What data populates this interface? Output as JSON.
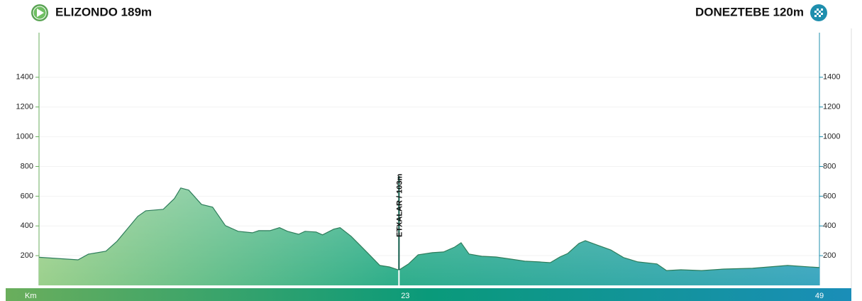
{
  "chart_data": {
    "type": "area",
    "title_left": "ELIZONDO 189m",
    "title_right": "DONEZTEBE 120m",
    "x": [
      0,
      2.45,
      3.1,
      4.2,
      4.9,
      6.2,
      6.7,
      7.8,
      8.5,
      8.9,
      9.4,
      10.2,
      10.9,
      11.7,
      12.5,
      13.4,
      13.8,
      14.5,
      15.1,
      15.6,
      16.3,
      16.7,
      17.4,
      17.8,
      18.5,
      18.9,
      19.6,
      20.7,
      21.4,
      22.0,
      22.6,
      23.2,
      23.8,
      24.7,
      25.4,
      26.1,
      26.5,
      27.0,
      27.8,
      28.7,
      29.6,
      30.5,
      31.4,
      32.1,
      32.7,
      33.2,
      33.9,
      34.3,
      35.0,
      35.9,
      36.7,
      37.6,
      38.8,
      39.4,
      40.3,
      41.6,
      43.0,
      44.8,
      47.0,
      49.0
    ],
    "values": [
      189,
      172,
      210,
      230,
      297,
      464,
      502,
      512,
      584,
      655,
      641,
      545,
      526,
      402,
      364,
      354,
      368,
      368,
      388,
      364,
      344,
      364,
      359,
      340,
      378,
      388,
      330,
      211,
      134,
      124,
      103,
      144,
      206,
      220,
      225,
      258,
      287,
      211,
      196,
      191,
      177,
      163,
      158,
      153,
      191,
      215,
      282,
      301,
      273,
      239,
      187,
      158,
      144,
      100,
      105,
      100,
      110,
      115,
      134,
      120
    ],
    "xlim": [
      0,
      49
    ],
    "xticks": [
      {
        "value": 0,
        "label": "Km"
      },
      23,
      49
    ],
    "ylim": [
      0,
      1700
    ],
    "yticks": [
      200,
      400,
      600,
      800,
      1000,
      1200,
      1400
    ],
    "annotation": {
      "text": "ETXALAR / 103m",
      "x": 22.6,
      "value": 103
    },
    "color_start": "#6aae5c",
    "color_end": "#2b95b4"
  }
}
